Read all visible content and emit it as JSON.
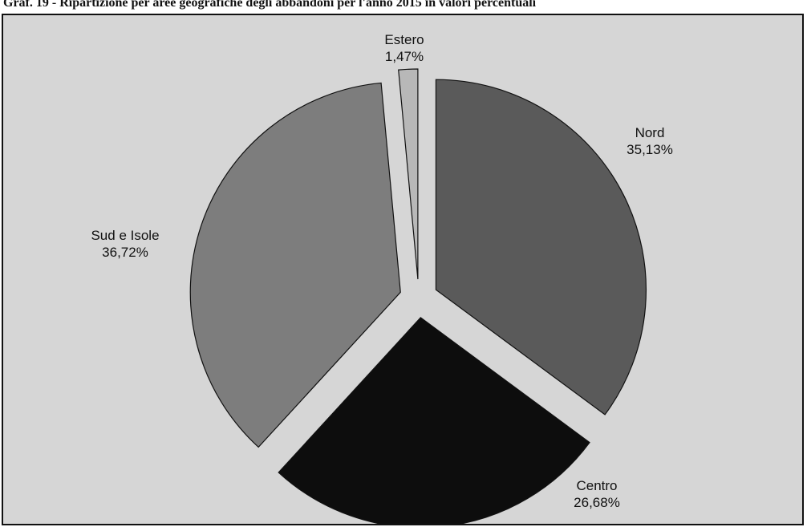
{
  "caption": "Graf. 19 - Ripartizione per aree geografiche degli abbandoni per l'anno 2015 in valori percentuali",
  "chart_data": {
    "type": "pie",
    "title": "",
    "start_angle_deg": 0,
    "direction": "clockwise",
    "exploded": true,
    "slices": [
      {
        "label": "Nord",
        "value": 35.13,
        "value_label": "35,13%",
        "color": "#5a5a5a"
      },
      {
        "label": "Centro",
        "value": 26.68,
        "value_label": "26,68%",
        "color": "#0d0d0d"
      },
      {
        "label": "Sud e Isole",
        "value": 36.72,
        "value_label": "36,72%",
        "color": "#7d7d7d"
      },
      {
        "label": "Estero",
        "value": 1.47,
        "value_label": "1,47%",
        "color": "#b8b8b8"
      }
    ]
  }
}
